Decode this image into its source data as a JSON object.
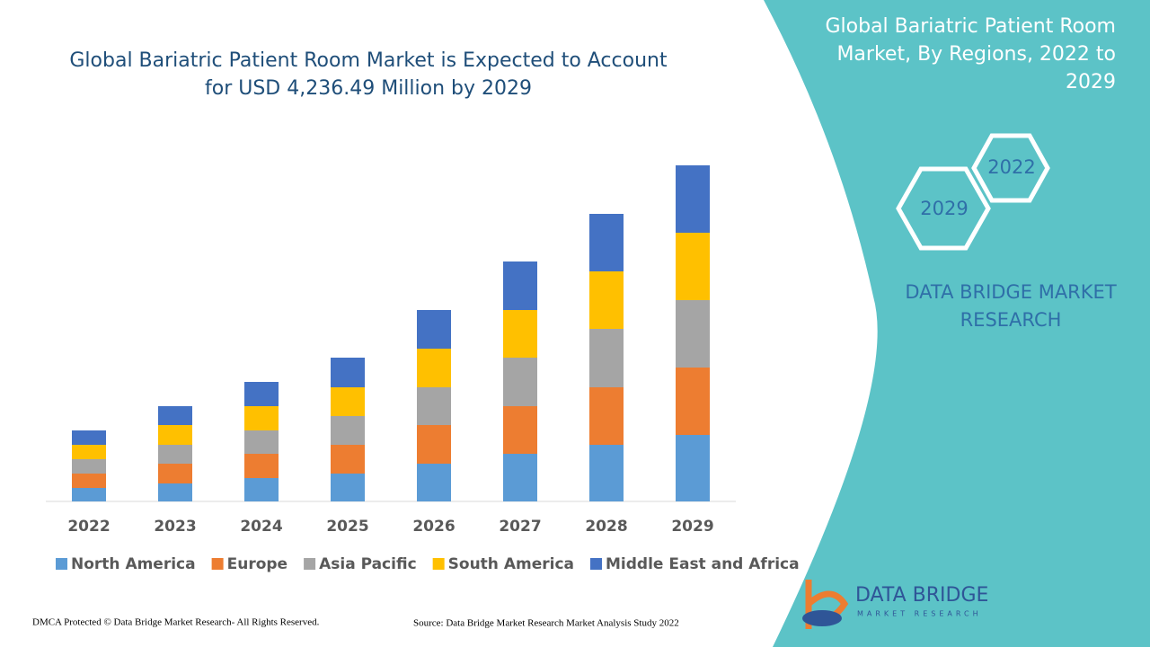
{
  "chart_data": {
    "type": "stacked-bar",
    "title": "Global Bariatric Patient Room Market is Expected to Account for USD 4,236.49 Million by 2029",
    "categories": [
      "2022",
      "2023",
      "2024",
      "2025",
      "2026",
      "2027",
      "2028",
      "2029"
    ],
    "series": [
      {
        "name": "North America",
        "color": "#5b9bd5",
        "values": [
          15,
          20,
          26,
          31,
          42,
          53,
          63,
          74
        ]
      },
      {
        "name": "Europe",
        "color": "#ed7d31",
        "values": [
          16,
          22,
          27,
          32,
          43,
          53,
          64,
          75
        ]
      },
      {
        "name": "Asia Pacific",
        "color": "#a5a5a5",
        "values": [
          16,
          21,
          26,
          32,
          42,
          54,
          65,
          75
        ]
      },
      {
        "name": "South America",
        "color": "#ffc000",
        "values": [
          16,
          22,
          27,
          32,
          43,
          53,
          64,
          75
        ]
      },
      {
        "name": "Middle East and Africa",
        "color": "#4472c4",
        "values": [
          16,
          21,
          27,
          33,
          43,
          54,
          64,
          75
        ]
      }
    ],
    "ylim": [
      0,
      400
    ]
  },
  "side_panel": {
    "title": "Global Bariatric Patient Room Market, By Regions, 2022 to 2029",
    "hexagons": [
      "2022",
      "2029"
    ],
    "brand": "DATA BRIDGE MARKET RESEARCH"
  },
  "logo": {
    "name": "DATA BRIDGE",
    "tagline": "MARKET RESEARCH"
  },
  "footer": {
    "copyright": "DMCA Protected © Data Bridge Market Research- All Rights Reserved.",
    "source": "Source: Data Bridge Market Research Market Analysis Study 2022"
  }
}
